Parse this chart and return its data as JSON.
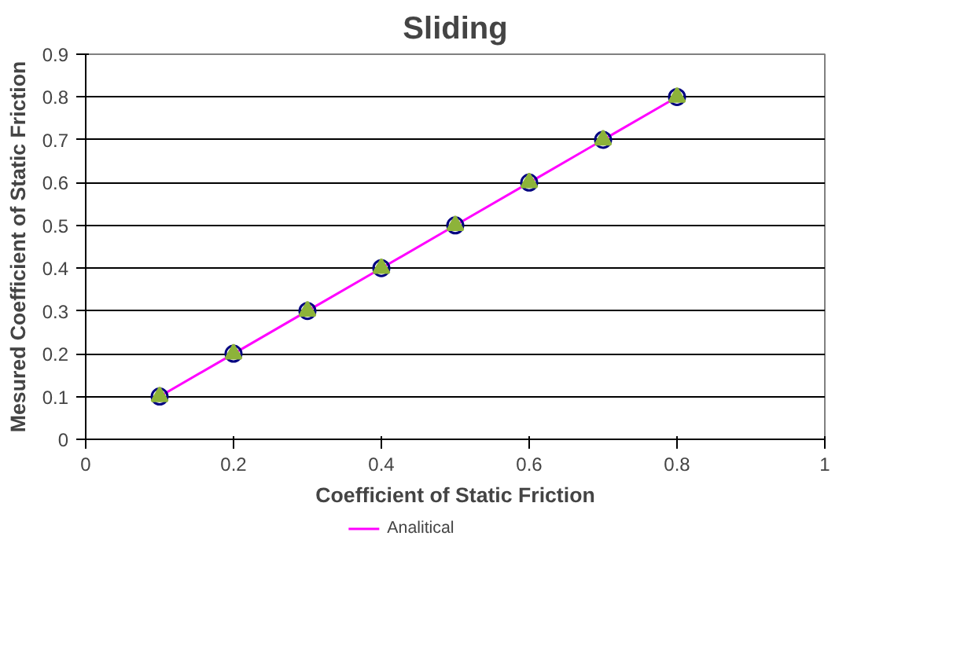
{
  "chart_data": {
    "type": "line",
    "title": "Sliding",
    "xlabel": "Coefficient of Static Friction",
    "ylabel": "Mesured Coefficient of Static Friction",
    "x": [
      0.1,
      0.2,
      0.3,
      0.4,
      0.5,
      0.6,
      0.7,
      0.8
    ],
    "series": [
      {
        "name": "Analitical",
        "color": "#ff00ff",
        "marker": "none",
        "values": [
          0.1,
          0.2,
          0.3,
          0.4,
          0.5,
          0.6,
          0.7,
          0.8
        ]
      },
      {
        "type": "scatter",
        "color": "#000080",
        "marker": "circle",
        "values": [
          0.1,
          0.2,
          0.3,
          0.4,
          0.5,
          0.6,
          0.7,
          0.8
        ]
      },
      {
        "type": "scatter",
        "color": "#8db33a",
        "marker": "triangle",
        "values": [
          0.1,
          0.2,
          0.3,
          0.4,
          0.5,
          0.6,
          0.7,
          0.8
        ]
      }
    ],
    "xlim": [
      0,
      1
    ],
    "xticks": [
      0,
      0.2,
      0.4,
      0.6,
      0.8,
      1
    ],
    "ylim": [
      0,
      0.9
    ],
    "yticks": [
      0,
      0.1,
      0.2,
      0.3,
      0.4,
      0.5,
      0.6,
      0.7,
      0.8,
      0.9
    ],
    "grid": "y",
    "legend": "bottom"
  }
}
